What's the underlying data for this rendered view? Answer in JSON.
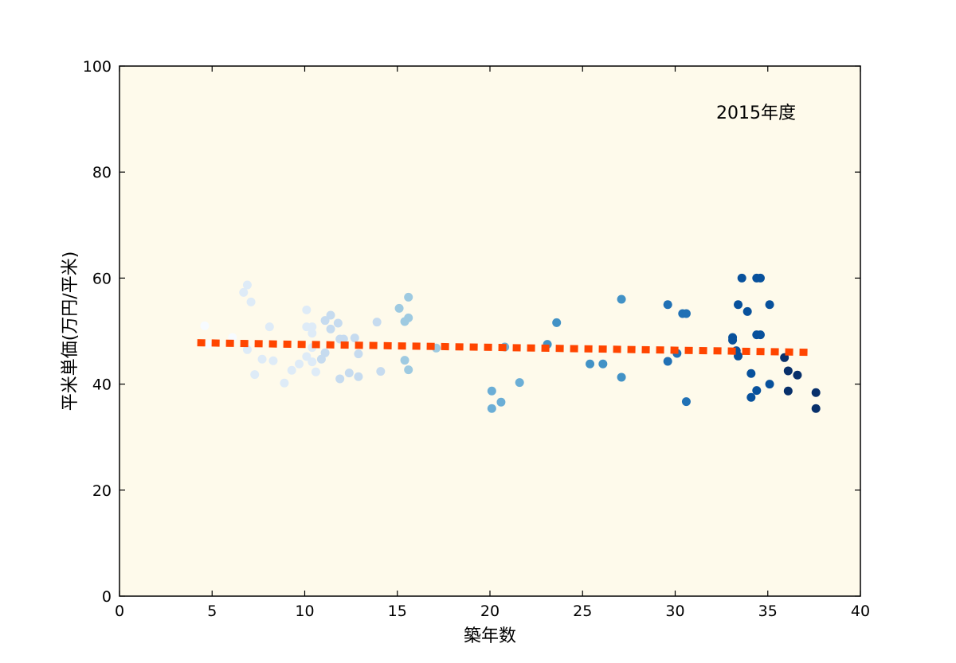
{
  "chart_data": {
    "type": "scatter",
    "title": "",
    "annotation": "2015年度",
    "xlabel": "築年数",
    "ylabel": "平米単価(万円/平米)",
    "xlim": [
      0,
      40
    ],
    "ylim": [
      0,
      100
    ],
    "xticks": [
      0,
      5,
      10,
      15,
      20,
      25,
      30,
      35,
      40
    ],
    "yticks": [
      0,
      20,
      40,
      60,
      80,
      100
    ],
    "grid": false,
    "colors": {
      "plot_background": "#fefaeb",
      "trend_line": "#ff4500",
      "color_scale": [
        "#f7fbff",
        "#deebf7",
        "#c6dbef",
        "#9ecae1",
        "#6baed6",
        "#4292c6",
        "#2171b5",
        "#08519c",
        "#08306b"
      ]
    },
    "color_encoding": "point colour darkens as 築年数 increases",
    "points": [
      {
        "x": 4.6,
        "y": 51.0
      },
      {
        "x": 4.8,
        "y": 47.5
      },
      {
        "x": 6.1,
        "y": 48.8
      },
      {
        "x": 6.7,
        "y": 57.3
      },
      {
        "x": 6.9,
        "y": 58.7
      },
      {
        "x": 6.9,
        "y": 46.5
      },
      {
        "x": 7.1,
        "y": 55.5
      },
      {
        "x": 7.3,
        "y": 41.8
      },
      {
        "x": 7.7,
        "y": 44.7
      },
      {
        "x": 8.1,
        "y": 50.8
      },
      {
        "x": 8.3,
        "y": 44.4
      },
      {
        "x": 8.9,
        "y": 40.2
      },
      {
        "x": 9.3,
        "y": 42.6
      },
      {
        "x": 9.7,
        "y": 43.8
      },
      {
        "x": 10.1,
        "y": 54.0
      },
      {
        "x": 10.1,
        "y": 50.8
      },
      {
        "x": 10.1,
        "y": 45.2
      },
      {
        "x": 10.4,
        "y": 50.8
      },
      {
        "x": 10.4,
        "y": 49.6
      },
      {
        "x": 10.4,
        "y": 46.9
      },
      {
        "x": 10.4,
        "y": 44.2
      },
      {
        "x": 10.6,
        "y": 42.3
      },
      {
        "x": 10.9,
        "y": 44.7
      },
      {
        "x": 11.1,
        "y": 52.0
      },
      {
        "x": 11.1,
        "y": 45.9
      },
      {
        "x": 11.4,
        "y": 53.0
      },
      {
        "x": 11.4,
        "y": 50.4
      },
      {
        "x": 11.8,
        "y": 51.5
      },
      {
        "x": 11.9,
        "y": 48.5
      },
      {
        "x": 11.9,
        "y": 41.0
      },
      {
        "x": 12.1,
        "y": 48.5
      },
      {
        "x": 12.4,
        "y": 42.1
      },
      {
        "x": 12.7,
        "y": 48.7
      },
      {
        "x": 12.9,
        "y": 45.7
      },
      {
        "x": 12.9,
        "y": 41.4
      },
      {
        "x": 13.9,
        "y": 51.7
      },
      {
        "x": 14.1,
        "y": 42.4
      },
      {
        "x": 15.1,
        "y": 54.3
      },
      {
        "x": 15.4,
        "y": 51.8
      },
      {
        "x": 15.4,
        "y": 44.5
      },
      {
        "x": 15.6,
        "y": 56.4
      },
      {
        "x": 15.6,
        "y": 52.5
      },
      {
        "x": 15.6,
        "y": 42.7
      },
      {
        "x": 17.1,
        "y": 46.8
      },
      {
        "x": 20.1,
        "y": 38.7
      },
      {
        "x": 20.1,
        "y": 35.4
      },
      {
        "x": 20.6,
        "y": 36.6
      },
      {
        "x": 20.8,
        "y": 47.0
      },
      {
        "x": 21.6,
        "y": 40.3
      },
      {
        "x": 23.1,
        "y": 47.5
      },
      {
        "x": 23.6,
        "y": 51.6
      },
      {
        "x": 25.4,
        "y": 43.8
      },
      {
        "x": 26.1,
        "y": 43.8
      },
      {
        "x": 27.1,
        "y": 56.0
      },
      {
        "x": 27.1,
        "y": 41.3
      },
      {
        "x": 29.6,
        "y": 55.0
      },
      {
        "x": 29.6,
        "y": 44.3
      },
      {
        "x": 30.1,
        "y": 45.8
      },
      {
        "x": 30.4,
        "y": 53.3
      },
      {
        "x": 30.6,
        "y": 53.3
      },
      {
        "x": 30.6,
        "y": 36.7
      },
      {
        "x": 33.1,
        "y": 48.8
      },
      {
        "x": 33.1,
        "y": 48.3
      },
      {
        "x": 33.3,
        "y": 46.3
      },
      {
        "x": 33.4,
        "y": 55.0
      },
      {
        "x": 33.4,
        "y": 45.3
      },
      {
        "x": 33.6,
        "y": 60.0
      },
      {
        "x": 33.9,
        "y": 53.7
      },
      {
        "x": 34.1,
        "y": 42.0
      },
      {
        "x": 34.1,
        "y": 37.5
      },
      {
        "x": 34.4,
        "y": 60.0
      },
      {
        "x": 34.4,
        "y": 49.3
      },
      {
        "x": 34.4,
        "y": 38.8
      },
      {
        "x": 34.6,
        "y": 60.0
      },
      {
        "x": 34.6,
        "y": 49.3
      },
      {
        "x": 35.1,
        "y": 55.0
      },
      {
        "x": 35.1,
        "y": 40.0
      },
      {
        "x": 35.9,
        "y": 45.0
      },
      {
        "x": 36.1,
        "y": 42.5
      },
      {
        "x": 36.1,
        "y": 38.7
      },
      {
        "x": 36.6,
        "y": 41.7
      },
      {
        "x": 37.6,
        "y": 38.4
      },
      {
        "x": 37.6,
        "y": 35.4
      }
    ],
    "trend_line": {
      "style": "dashed",
      "x": [
        4.2,
        37.2
      ],
      "y": [
        47.8,
        46.0
      ]
    }
  }
}
